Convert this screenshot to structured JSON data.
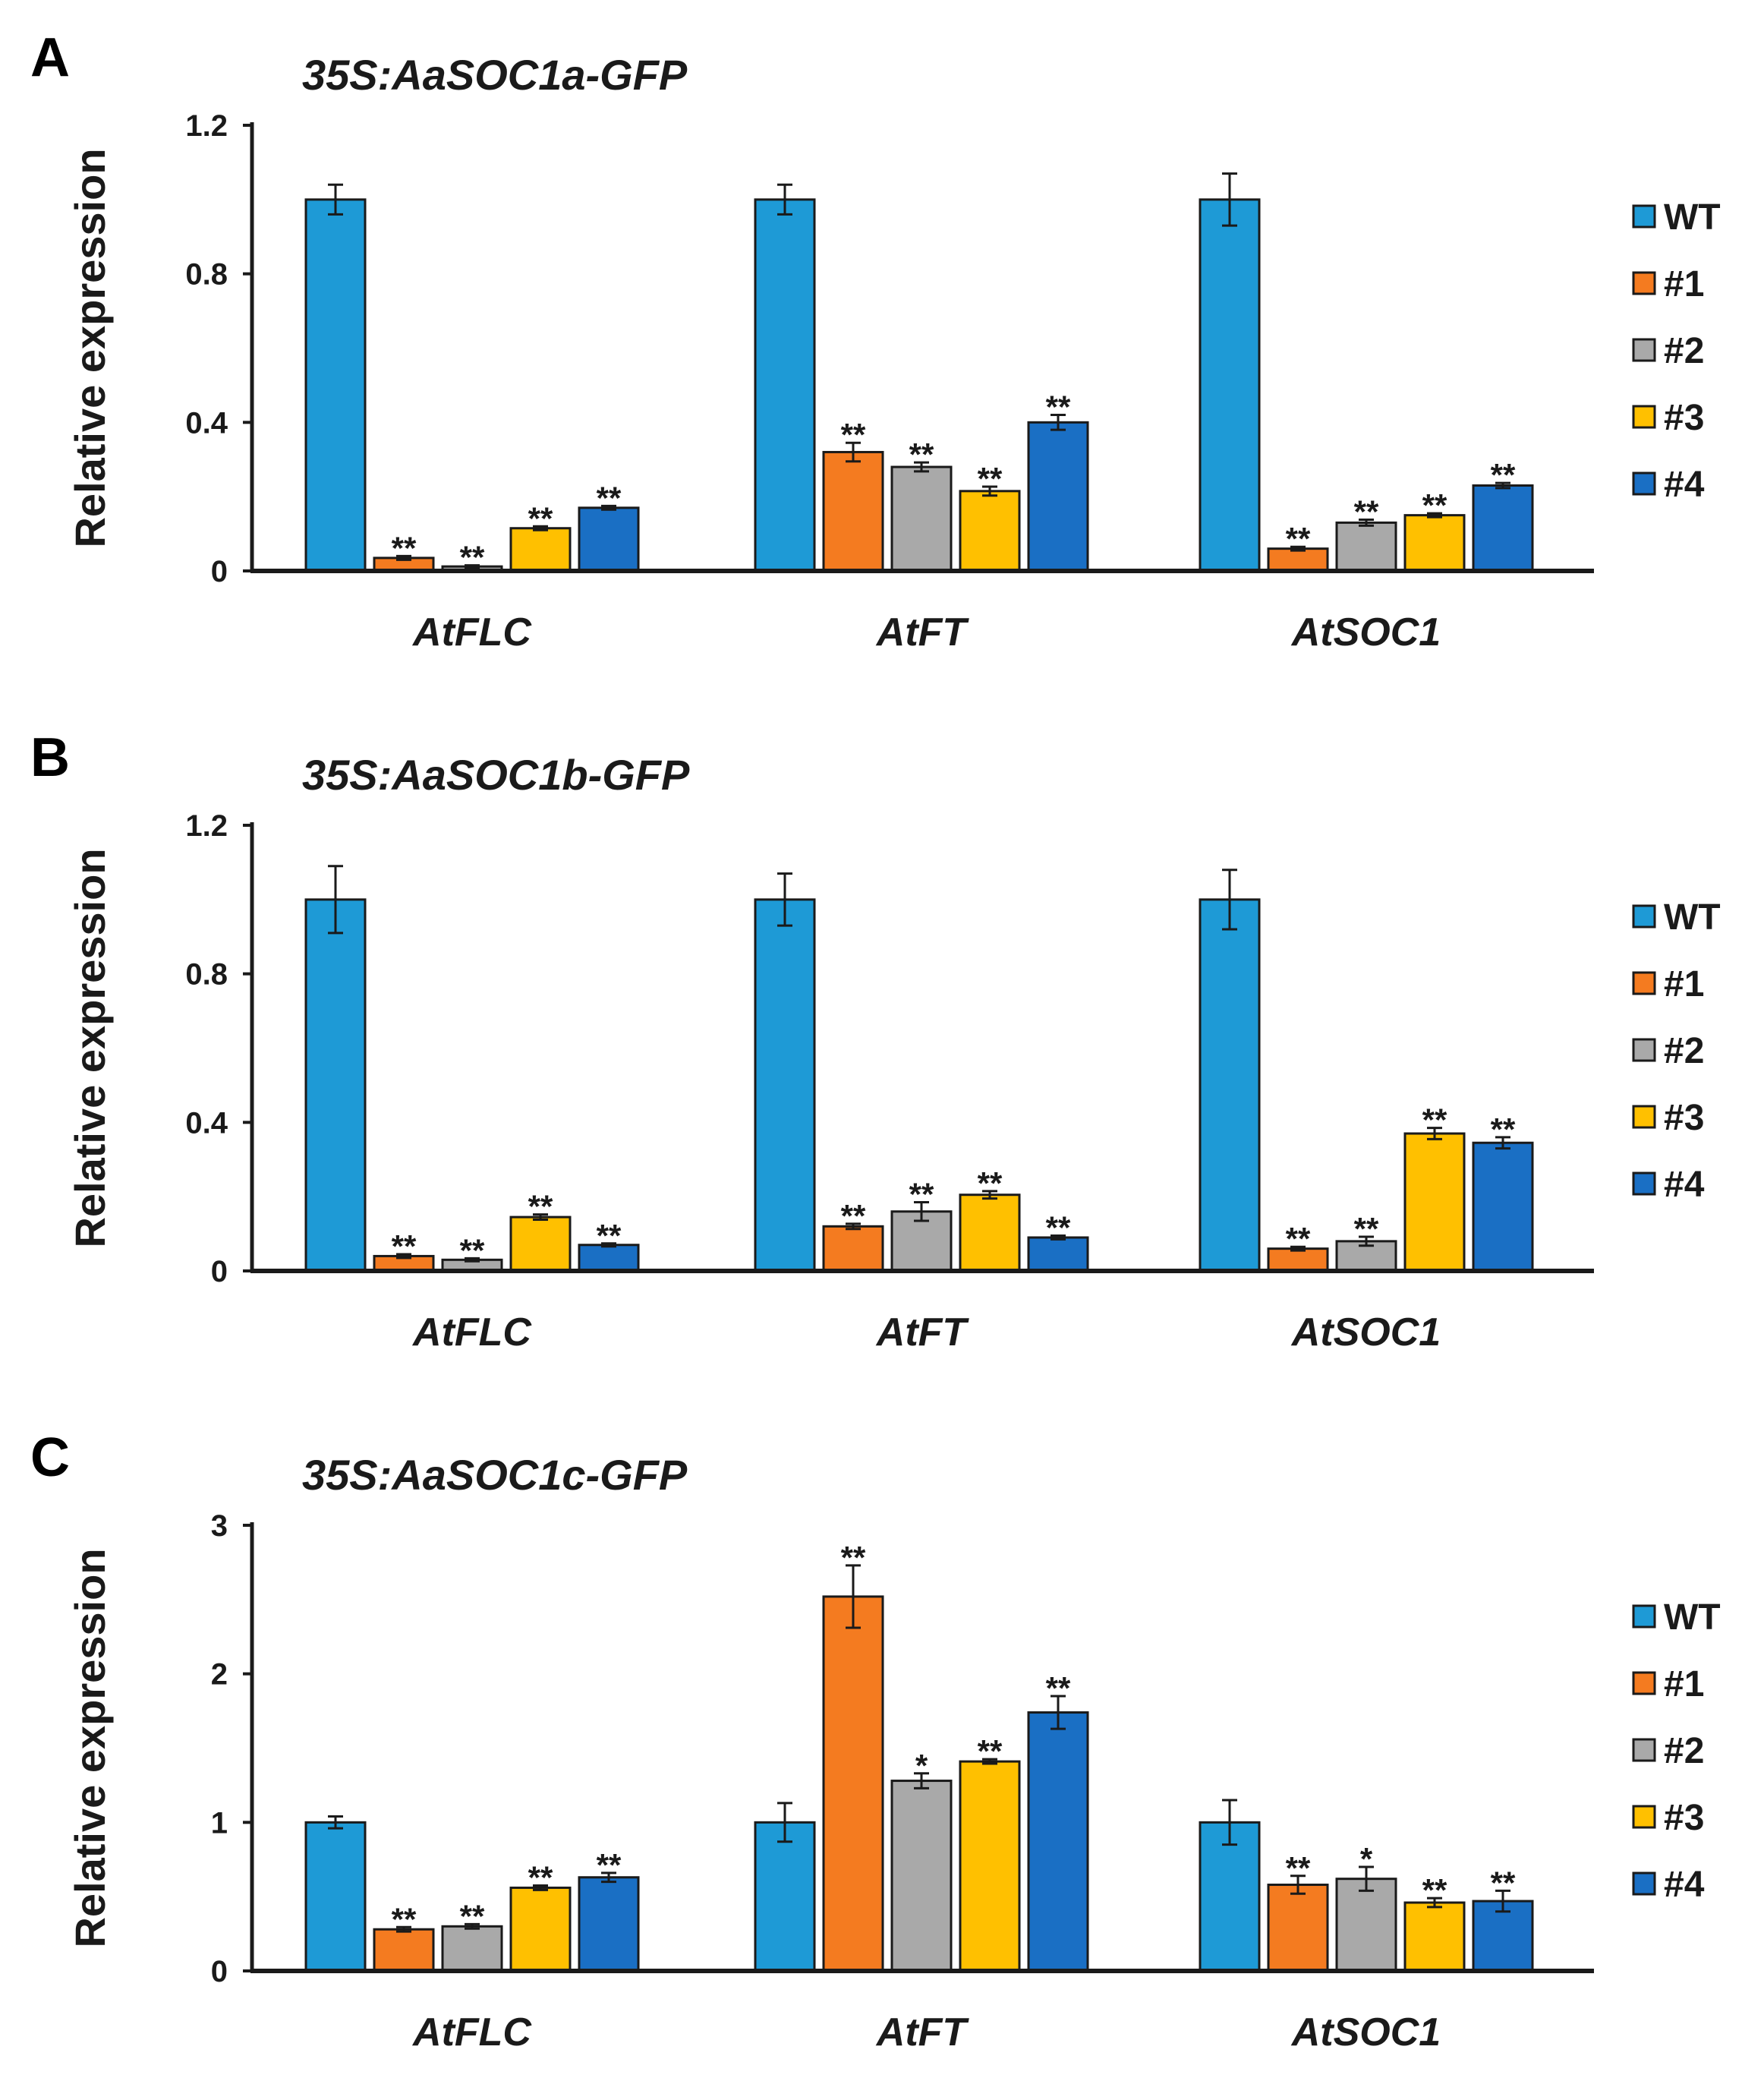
{
  "figure": {
    "legend_labels": [
      "WT",
      "#1",
      "#2",
      "#3",
      "#4"
    ],
    "colors": {
      "WT": "#1E9AD6",
      "#1": "#F47B20",
      "#2": "#A9A9A9",
      "#3": "#FFC000",
      "#4": "#1A6FC4",
      "axis": "#1a1a1a"
    }
  },
  "chart_data": [
    {
      "type": "bar",
      "panel_letter": "A",
      "title": "35S:AaSOC1a-GFP",
      "ylabel": "Relative expression",
      "xlabel": "",
      "ylim": [
        0,
        1.2
      ],
      "yticks": [
        0,
        0.4,
        0.8,
        1.2
      ],
      "ytick_labels": [
        "0",
        "0.4",
        "0.8",
        "1.2"
      ],
      "categories": [
        "AtFLC",
        "AtFT",
        "AtSOC1"
      ],
      "legend_position": "right",
      "series": [
        {
          "name": "WT",
          "values": [
            1.0,
            1.0,
            1.0
          ],
          "errors": [
            0.04,
            0.04,
            0.07
          ],
          "significance": [
            "",
            "",
            ""
          ]
        },
        {
          "name": "#1",
          "values": [
            0.035,
            0.32,
            0.06
          ],
          "errors": [
            0.005,
            0.025,
            0.005
          ],
          "significance": [
            "**",
            "**",
            "**"
          ]
        },
        {
          "name": "#2",
          "values": [
            0.012,
            0.28,
            0.13
          ],
          "errors": [
            0.003,
            0.012,
            0.008
          ],
          "significance": [
            "**",
            "**",
            "**"
          ]
        },
        {
          "name": "#3",
          "values": [
            0.115,
            0.215,
            0.15
          ],
          "errors": [
            0.005,
            0.012,
            0.005
          ],
          "significance": [
            "**",
            "**",
            "**"
          ]
        },
        {
          "name": "#4",
          "values": [
            0.17,
            0.4,
            0.23
          ],
          "errors": [
            0.005,
            0.02,
            0.007
          ],
          "significance": [
            "**",
            "**",
            "**"
          ]
        }
      ]
    },
    {
      "type": "bar",
      "panel_letter": "B",
      "title": "35S:AaSOC1b-GFP",
      "ylabel": "Relative expression",
      "xlabel": "",
      "ylim": [
        0,
        1.2
      ],
      "yticks": [
        0,
        0.4,
        0.8,
        1.2
      ],
      "ytick_labels": [
        "0",
        "0.4",
        "0.8",
        "1.2"
      ],
      "categories": [
        "AtFLC",
        "AtFT",
        "AtSOC1"
      ],
      "legend_position": "right",
      "series": [
        {
          "name": "WT",
          "values": [
            1.0,
            1.0,
            1.0
          ],
          "errors": [
            0.09,
            0.07,
            0.08
          ],
          "significance": [
            "",
            "",
            ""
          ]
        },
        {
          "name": "#1",
          "values": [
            0.04,
            0.12,
            0.06
          ],
          "errors": [
            0.005,
            0.007,
            0.005
          ],
          "significance": [
            "**",
            "**",
            "**"
          ]
        },
        {
          "name": "#2",
          "values": [
            0.03,
            0.16,
            0.08
          ],
          "errors": [
            0.004,
            0.025,
            0.012
          ],
          "significance": [
            "**",
            "**",
            "**"
          ]
        },
        {
          "name": "#3",
          "values": [
            0.145,
            0.205,
            0.37
          ],
          "errors": [
            0.007,
            0.01,
            0.015
          ],
          "significance": [
            "**",
            "**",
            "**"
          ]
        },
        {
          "name": "#4",
          "values": [
            0.07,
            0.09,
            0.345
          ],
          "errors": [
            0.004,
            0.005,
            0.015
          ],
          "significance": [
            "**",
            "**",
            "**"
          ]
        }
      ]
    },
    {
      "type": "bar",
      "panel_letter": "C",
      "title": "35S:AaSOC1c-GFP",
      "ylabel": "Relative expression",
      "xlabel": "",
      "ylim": [
        0,
        3
      ],
      "yticks": [
        0,
        1,
        2,
        3
      ],
      "ytick_labels": [
        "0",
        "1",
        "2",
        "3"
      ],
      "categories": [
        "AtFLC",
        "AtFT",
        "AtSOC1"
      ],
      "legend_position": "right",
      "series": [
        {
          "name": "WT",
          "values": [
            1.0,
            1.0,
            1.0
          ],
          "errors": [
            0.04,
            0.13,
            0.15
          ],
          "significance": [
            "",
            "",
            ""
          ]
        },
        {
          "name": "#1",
          "values": [
            0.28,
            2.52,
            0.58
          ],
          "errors": [
            0.015,
            0.21,
            0.06
          ],
          "significance": [
            "**",
            "**",
            "**"
          ]
        },
        {
          "name": "#2",
          "values": [
            0.3,
            1.28,
            0.62
          ],
          "errors": [
            0.015,
            0.05,
            0.08
          ],
          "significance": [
            "**",
            "*",
            "*"
          ]
        },
        {
          "name": "#3",
          "values": [
            0.56,
            1.41,
            0.46
          ],
          "errors": [
            0.015,
            0.015,
            0.03
          ],
          "significance": [
            "**",
            "**",
            "**"
          ]
        },
        {
          "name": "#4",
          "values": [
            0.63,
            1.74,
            0.47
          ],
          "errors": [
            0.03,
            0.11,
            0.07
          ],
          "significance": [
            "**",
            "**",
            "**"
          ]
        }
      ]
    }
  ]
}
